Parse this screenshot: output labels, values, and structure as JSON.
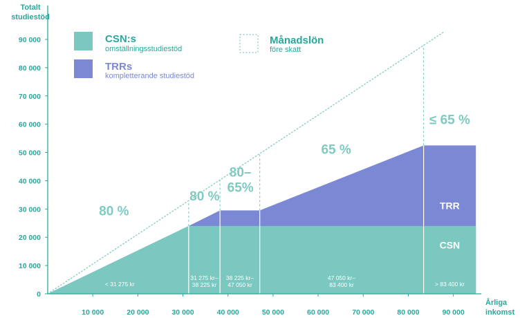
{
  "chart_data": {
    "type": "area",
    "ylabel_lines": [
      "Totalt",
      "studiestöd"
    ],
    "xlabel_lines": [
      "Årliga",
      "inkomst"
    ],
    "xlim": [
      0,
      95000
    ],
    "ylim": [
      0,
      95000
    ],
    "x_ticks": [
      "10 000",
      "20 000",
      "30 000",
      "40 000",
      "50 000",
      "60 000",
      "70 000",
      "80 000",
      "90 000"
    ],
    "y_ticks": [
      "0",
      "10 000",
      "20 000",
      "30 000",
      "40 000",
      "50 000",
      "60 000",
      "70 000",
      "80 000",
      "90 000"
    ],
    "legend": {
      "csn": {
        "title": "CSN:s",
        "subtitle": "omställningsstudiestöd",
        "color": "#7ac8c0"
      },
      "trr": {
        "title": "TRRs",
        "subtitle": "kompletterande studiestöd",
        "color": "#7b88d3"
      },
      "salary": {
        "title": "Månadslön",
        "subtitle": "före skatt",
        "color": "#7fcac1"
      }
    },
    "series": [
      {
        "name": "CSN",
        "x": [
          0,
          31275,
          95000
        ],
        "y": [
          0,
          24000,
          24000
        ]
      },
      {
        "name": "TRR",
        "x": [
          0,
          31275,
          38225,
          47050,
          83400,
          95000
        ],
        "y": [
          0,
          24000,
          29500,
          29500,
          52500,
          52500
        ]
      },
      {
        "name": "Månadslön",
        "x": [
          0,
          95000
        ],
        "y": [
          0,
          95000
        ]
      }
    ],
    "band_boundaries": [
      31275,
      38225,
      47050,
      83400
    ],
    "band_labels": [
      {
        "lines": [
          "< 31 275 kr"
        ],
        "x": 16000
      },
      {
        "lines": [
          "31 275 kr–",
          "38 225 kr"
        ],
        "x": 34750
      },
      {
        "lines": [
          "38 225 kr–",
          "47 050 kr"
        ],
        "x": 42650
      },
      {
        "lines": [
          "47 050 kr–",
          "83 400 kr"
        ],
        "x": 65200
      },
      {
        "lines": [
          "> 83 400 kr"
        ],
        "x": 89200
      }
    ],
    "annotations": [
      {
        "lines": [
          "80 %"
        ],
        "x": 14700,
        "y": 27700
      },
      {
        "lines": [
          "80 %"
        ],
        "x": 34800,
        "y": 33000
      },
      {
        "lines": [
          "80–",
          "65%"
        ],
        "x": 42750,
        "y": 41500
      },
      {
        "lines": [
          "65 %"
        ],
        "x": 64000,
        "y": 49500
      },
      {
        "lines": [
          "≤ 65 %"
        ],
        "x": 89200,
        "y": 60000
      }
    ],
    "area_labels": [
      {
        "text": "TRR",
        "x": 89200,
        "y": 30000
      },
      {
        "text": "CSN",
        "x": 89200,
        "y": 16000
      }
    ]
  }
}
